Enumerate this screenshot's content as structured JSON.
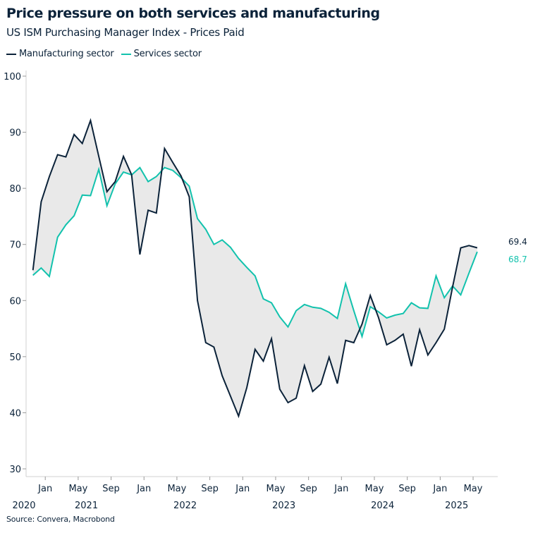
{
  "colors": {
    "manufacturing": "#0b2239",
    "services": "#12c2ad",
    "fill": "#e9e9e9",
    "axis": "#d0d0d0"
  },
  "chart_data": {
    "type": "line",
    "title": "Price pressure on both services and manufacturing",
    "subtitle": "US ISM Purchasing Manager Index - Prices Paid",
    "source": "Source: Convera, Macrobond",
    "ylim": [
      30,
      100
    ],
    "yticks": [
      30,
      40,
      50,
      60,
      70,
      80,
      90,
      100
    ],
    "x_start": "2020-11",
    "x_end": "2025-05",
    "xtick_labels": [
      {
        "month": "2021-01",
        "label": "Jan"
      },
      {
        "month": "2021-05",
        "label": "May"
      },
      {
        "month": "2021-09",
        "label": "Sep"
      },
      {
        "month": "2022-01",
        "label": "Jan"
      },
      {
        "month": "2022-05",
        "label": "May"
      },
      {
        "month": "2022-09",
        "label": "Sep"
      },
      {
        "month": "2023-01",
        "label": "Jan"
      },
      {
        "month": "2023-05",
        "label": "May"
      },
      {
        "month": "2023-09",
        "label": "Sep"
      },
      {
        "month": "2024-01",
        "label": "Jan"
      },
      {
        "month": "2024-05",
        "label": "May"
      },
      {
        "month": "2024-09",
        "label": "Sep"
      },
      {
        "month": "2025-01",
        "label": "Jan"
      },
      {
        "month": "2025-05",
        "label": "May"
      }
    ],
    "year_labels": [
      {
        "month": "2020-11",
        "label": "2020"
      },
      {
        "month": "2021-06",
        "label": "2021"
      },
      {
        "month": "2022-06",
        "label": "2022"
      },
      {
        "month": "2023-06",
        "label": "2023"
      },
      {
        "month": "2024-06",
        "label": "2024"
      },
      {
        "month": "2025-03",
        "label": "2025"
      }
    ],
    "grid": false,
    "legend_position": "top-left",
    "fill_between": true,
    "series": [
      {
        "name": "Manufacturing sector",
        "color": "#0b2239",
        "last_label": "69.4",
        "values": [
          65.4,
          77.6,
          82.1,
          86.0,
          85.6,
          89.6,
          88.0,
          92.1,
          85.7,
          79.4,
          81.2,
          85.7,
          82.4,
          68.2,
          76.1,
          75.6,
          87.1,
          84.6,
          82.2,
          78.5,
          60.0,
          52.5,
          51.7,
          46.6,
          43.0,
          39.4,
          44.5,
          51.3,
          49.2,
          53.2,
          44.2,
          41.8,
          42.6,
          48.4,
          43.8,
          45.1,
          49.9,
          45.2,
          52.9,
          52.5,
          55.8,
          60.9,
          57.0,
          52.1,
          52.9,
          54.0,
          48.3,
          54.8,
          50.3,
          52.5,
          54.9,
          62.4,
          69.4,
          69.8,
          69.4
        ]
      },
      {
        "name": "Services sector",
        "color": "#12c2ad",
        "last_label": "68.7",
        "values": [
          64.5,
          65.8,
          64.3,
          71.3,
          73.5,
          75.1,
          78.8,
          78.7,
          83.4,
          76.9,
          80.8,
          82.9,
          82.4,
          83.7,
          81.2,
          82.1,
          83.7,
          83.2,
          81.9,
          80.4,
          74.6,
          72.7,
          70.0,
          70.8,
          69.5,
          67.5,
          65.9,
          64.4,
          60.3,
          59.6,
          57.1,
          55.3,
          58.2,
          59.3,
          58.8,
          58.6,
          57.9,
          56.8,
          63.0,
          58.2,
          53.6,
          58.9,
          58.0,
          56.9,
          57.4,
          57.7,
          59.6,
          58.7,
          58.6,
          64.4,
          60.5,
          62.6,
          61.0,
          64.9,
          68.7
        ]
      }
    ]
  }
}
